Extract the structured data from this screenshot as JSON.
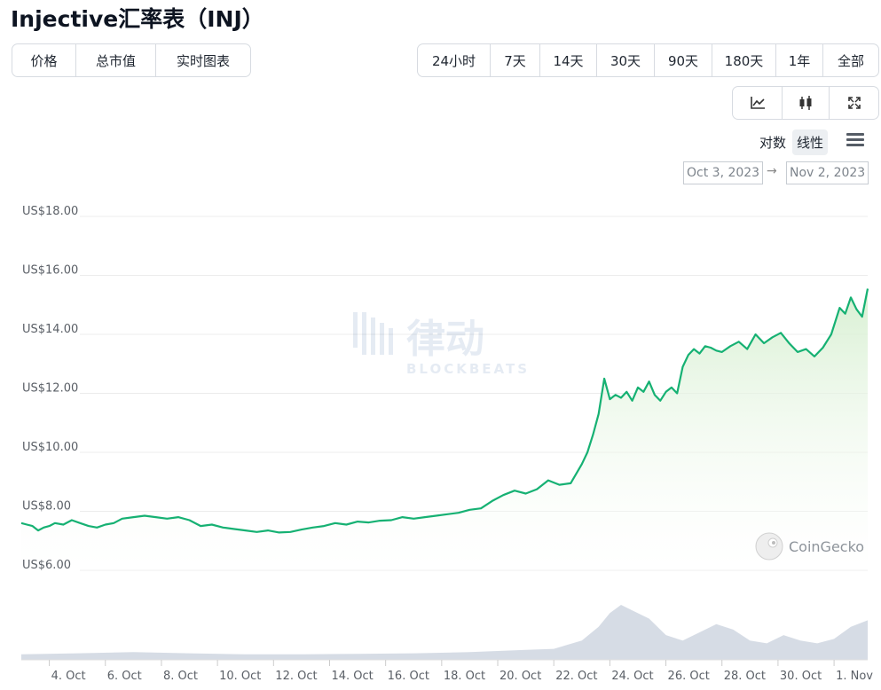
{
  "title": "Injective汇率表（INJ）",
  "view_tabs": [
    "价格",
    "总市值",
    "实时图表"
  ],
  "active_view_tab": "价格",
  "range_tabs": [
    "24小时",
    "7天",
    "14天",
    "30天",
    "90天",
    "180天",
    "1年",
    "全部"
  ],
  "active_range_tab": "30天",
  "chart_tools": [
    {
      "icon": "line-chart-icon",
      "active": true
    },
    {
      "icon": "candlestick-icon",
      "active": false
    },
    {
      "icon": "fullscreen-icon",
      "active": false
    }
  ],
  "scale_options": [
    "对数",
    "线性"
  ],
  "active_scale": "线性",
  "date_from": "Oct 3, 2023",
  "date_arrow": "→",
  "date_to": "Nov 2, 2023",
  "watermark": {
    "cn": "律动",
    "en": "BLOCKBEATS"
  },
  "attribution": "CoinGecko",
  "colors": {
    "line": "#16b173",
    "fill_top": "#d6efd0",
    "volume": "#cfd6e0",
    "grid": "#ececec"
  },
  "chart_data": {
    "type": "area",
    "title": "",
    "xlabel": "",
    "ylabel": "",
    "ylim": [
      5.8,
      18.0
    ],
    "y_ticks": [
      "US$6.00",
      "US$8.00",
      "US$10.00",
      "US$12.00",
      "US$14.00",
      "US$16.00",
      "US$18.00"
    ],
    "y_tick_values": [
      6,
      8,
      10,
      12,
      14,
      16,
      18
    ],
    "x_ticks": [
      "4. Oct",
      "6. Oct",
      "8. Oct",
      "10. Oct",
      "12. Oct",
      "14. Oct",
      "16. Oct",
      "18. Oct",
      "20. Oct",
      "22. Oct",
      "24. Oct",
      "26. Oct",
      "28. Oct",
      "30. Oct",
      "1. Nov"
    ],
    "x_tick_values": [
      1,
      3,
      5,
      7,
      9,
      11,
      13,
      15,
      17,
      19,
      21,
      23,
      25,
      27,
      29
    ],
    "x_range_days": [
      0,
      30.2
    ],
    "series": [
      {
        "unit": "USD",
        "x": [
          0.0,
          0.2,
          0.4,
          0.6,
          0.8,
          1.0,
          1.2,
          1.5,
          1.8,
          2.1,
          2.4,
          2.7,
          3.0,
          3.3,
          3.6,
          4.0,
          4.4,
          4.8,
          5.2,
          5.6,
          6.0,
          6.4,
          6.8,
          7.2,
          7.6,
          8.0,
          8.4,
          8.8,
          9.2,
          9.6,
          10.0,
          10.4,
          10.8,
          11.2,
          11.6,
          12.0,
          12.4,
          12.8,
          13.2,
          13.6,
          14.0,
          14.4,
          14.8,
          15.2,
          15.6,
          16.0,
          16.4,
          16.8,
          17.2,
          17.6,
          18.0,
          18.4,
          18.8,
          19.2,
          19.6,
          20.0,
          20.2,
          20.4,
          20.6,
          20.8,
          21.0,
          21.2,
          21.4,
          21.6,
          21.8,
          22.0,
          22.2,
          22.4,
          22.6,
          22.8,
          23.0,
          23.2,
          23.4,
          23.6,
          23.8,
          24.0,
          24.2,
          24.4,
          24.6,
          24.8,
          25.0,
          25.3,
          25.6,
          25.9,
          26.2,
          26.5,
          26.8,
          27.1,
          27.4,
          27.7,
          28.0,
          28.3,
          28.6,
          28.9,
          29.2,
          29.4,
          29.6,
          29.8,
          30.0,
          30.2
        ],
        "values": [
          7.6,
          7.55,
          7.5,
          7.35,
          7.45,
          7.5,
          7.6,
          7.55,
          7.7,
          7.6,
          7.5,
          7.45,
          7.55,
          7.6,
          7.75,
          7.8,
          7.85,
          7.8,
          7.75,
          7.8,
          7.7,
          7.5,
          7.55,
          7.45,
          7.4,
          7.35,
          7.3,
          7.35,
          7.28,
          7.3,
          7.38,
          7.45,
          7.5,
          7.6,
          7.55,
          7.65,
          7.62,
          7.68,
          7.7,
          7.8,
          7.75,
          7.8,
          7.85,
          7.9,
          7.95,
          8.05,
          8.1,
          8.35,
          8.55,
          8.7,
          8.6,
          8.75,
          9.05,
          8.9,
          8.95,
          9.6,
          10.0,
          10.6,
          11.3,
          12.5,
          11.8,
          11.95,
          11.85,
          12.05,
          11.75,
          12.2,
          12.05,
          12.4,
          11.95,
          11.75,
          12.05,
          12.2,
          12.0,
          12.9,
          13.3,
          13.5,
          13.35,
          13.6,
          13.55,
          13.45,
          13.4,
          13.6,
          13.75,
          13.5,
          14.0,
          13.7,
          13.9,
          14.05,
          13.7,
          13.4,
          13.5,
          13.25,
          13.55,
          14.0,
          14.9,
          14.7,
          15.25,
          14.85,
          14.6,
          15.55
        ]
      }
    ],
    "volume": {
      "x": [
        0,
        2,
        4,
        6,
        8,
        10,
        12,
        14,
        16,
        18,
        19,
        20,
        20.6,
        21,
        21.4,
        21.8,
        22.4,
        23,
        23.6,
        24.2,
        24.8,
        25.4,
        26,
        26.6,
        27.2,
        27.8,
        28.4,
        29,
        29.6,
        30.2
      ],
      "values": [
        0.1,
        0.12,
        0.14,
        0.12,
        0.1,
        0.1,
        0.11,
        0.12,
        0.14,
        0.18,
        0.2,
        0.35,
        0.6,
        0.85,
        1.0,
        0.9,
        0.75,
        0.45,
        0.35,
        0.5,
        0.65,
        0.55,
        0.35,
        0.3,
        0.45,
        0.35,
        0.3,
        0.38,
        0.6,
        0.72
      ]
    }
  }
}
